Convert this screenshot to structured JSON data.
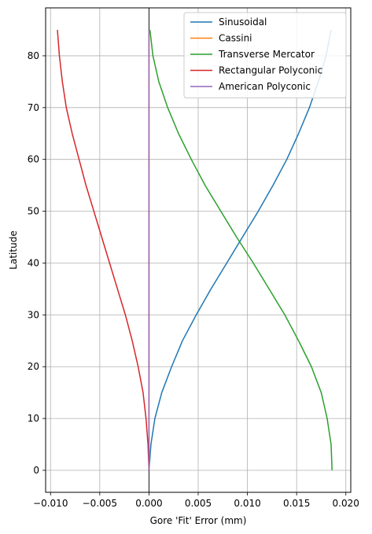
{
  "chart_data": {
    "type": "line",
    "xlabel": "Gore 'Fit' Error (mm)",
    "ylabel": "Latitude",
    "xlim": [
      -0.0105,
      0.0205
    ],
    "ylim": [
      -4.25,
      89.25
    ],
    "xticks": [
      -0.01,
      -0.005,
      0.0,
      0.005,
      0.01,
      0.015,
      0.02
    ],
    "xtick_labels": [
      "−0.010",
      "−0.005",
      "0.000",
      "0.005",
      "0.010",
      "0.015",
      "0.020"
    ],
    "yticks": [
      0,
      10,
      20,
      30,
      40,
      50,
      60,
      70,
      80
    ],
    "ytick_labels": [
      "0",
      "10",
      "20",
      "30",
      "40",
      "50",
      "60",
      "70",
      "80"
    ],
    "grid": true,
    "zero_vline": true,
    "legend_position": "top-right",
    "y": [
      0,
      5,
      10,
      15,
      20,
      25,
      30,
      35,
      40,
      45,
      50,
      55,
      60,
      65,
      70,
      75,
      80,
      85
    ],
    "series": [
      {
        "name": "Sinusoidal",
        "color": "#1f77b4",
        "values": [
          0,
          0.0002,
          0.0006,
          0.0013,
          0.0023,
          0.0034,
          0.0048,
          0.0063,
          0.0079,
          0.0095,
          0.0111,
          0.0126,
          0.014,
          0.0152,
          0.0163,
          0.0172,
          0.018,
          0.0185
        ]
      },
      {
        "name": "Cassini",
        "color": "#ff7f0e",
        "values": [
          0,
          0,
          0,
          0,
          0,
          0,
          0,
          0,
          0,
          0,
          0,
          0,
          0,
          0,
          0,
          0,
          0,
          0
        ]
      },
      {
        "name": "Transverse Mercator",
        "color": "#2ca02c",
        "values": [
          0.0186,
          0.0185,
          0.0181,
          0.0175,
          0.0165,
          0.0152,
          0.0138,
          0.0122,
          0.0106,
          0.0089,
          0.0073,
          0.0057,
          0.0043,
          0.003,
          0.0019,
          0.001,
          0.0004,
          0.0001
        ]
      },
      {
        "name": "Rectangular Polyconic",
        "color": "#d62728",
        "values": [
          0,
          -0.0001,
          -0.0003,
          -0.0006,
          -0.0011,
          -0.0017,
          -0.0024,
          -0.0032,
          -0.004,
          -0.0048,
          -0.0056,
          -0.0064,
          -0.0071,
          -0.0078,
          -0.0084,
          -0.0088,
          -0.0091,
          -0.0093
        ]
      },
      {
        "name": "American Polyconic",
        "color": "#9467bd",
        "values": [
          0,
          0,
          0,
          0,
          0,
          0,
          0,
          0,
          0,
          0,
          0,
          0,
          0,
          0,
          0,
          0,
          0,
          0
        ]
      }
    ]
  }
}
